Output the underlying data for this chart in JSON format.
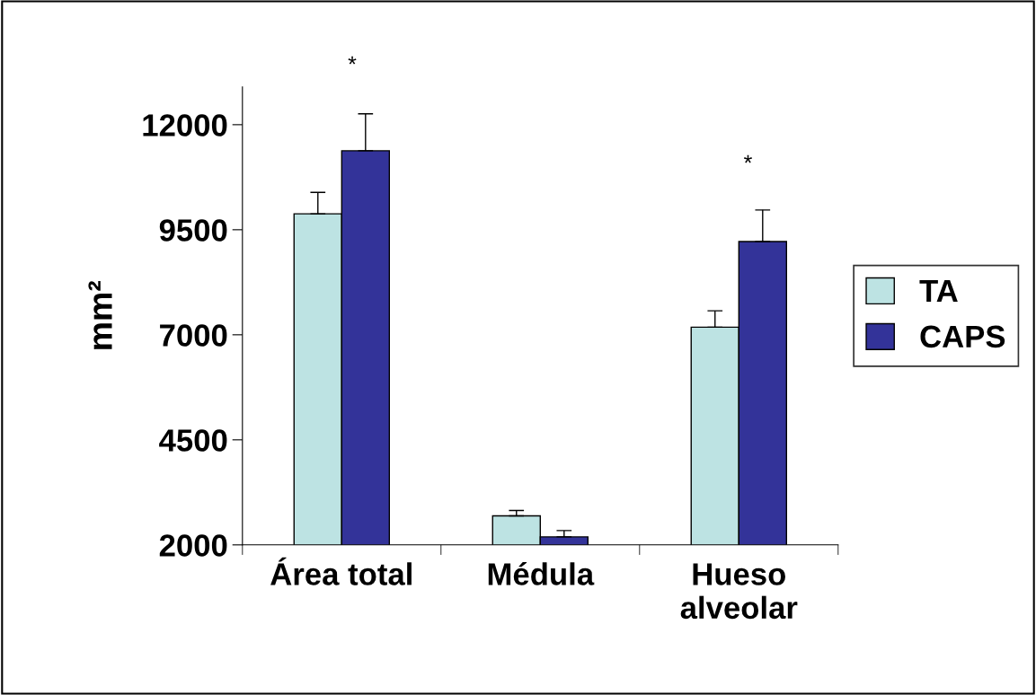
{
  "chart_data": {
    "type": "bar",
    "ylabel": "mm²",
    "categories": [
      "Área total",
      "Médula",
      "Hueso\nalveolar"
    ],
    "series": [
      {
        "name": "TA",
        "color": "#bde3e3",
        "values": [
          9880,
          2690,
          7180
        ],
        "errors": [
          [
            9880,
            10390
          ],
          [
            2690,
            2820
          ],
          [
            7180,
            7570
          ]
        ]
      },
      {
        "name": "CAPS",
        "color": "#333399",
        "values": [
          11380,
          2190,
          9220
        ],
        "errors": [
          [
            11380,
            12260
          ],
          [
            2190,
            2340
          ],
          [
            9220,
            9970
          ]
        ]
      }
    ],
    "ylim": [
      2000,
      12900
    ],
    "yticks": [
      2000,
      4500,
      7000,
      9500,
      12000
    ],
    "annotations": [
      "*",
      "*"
    ],
    "legend": "right",
    "grid": false
  }
}
